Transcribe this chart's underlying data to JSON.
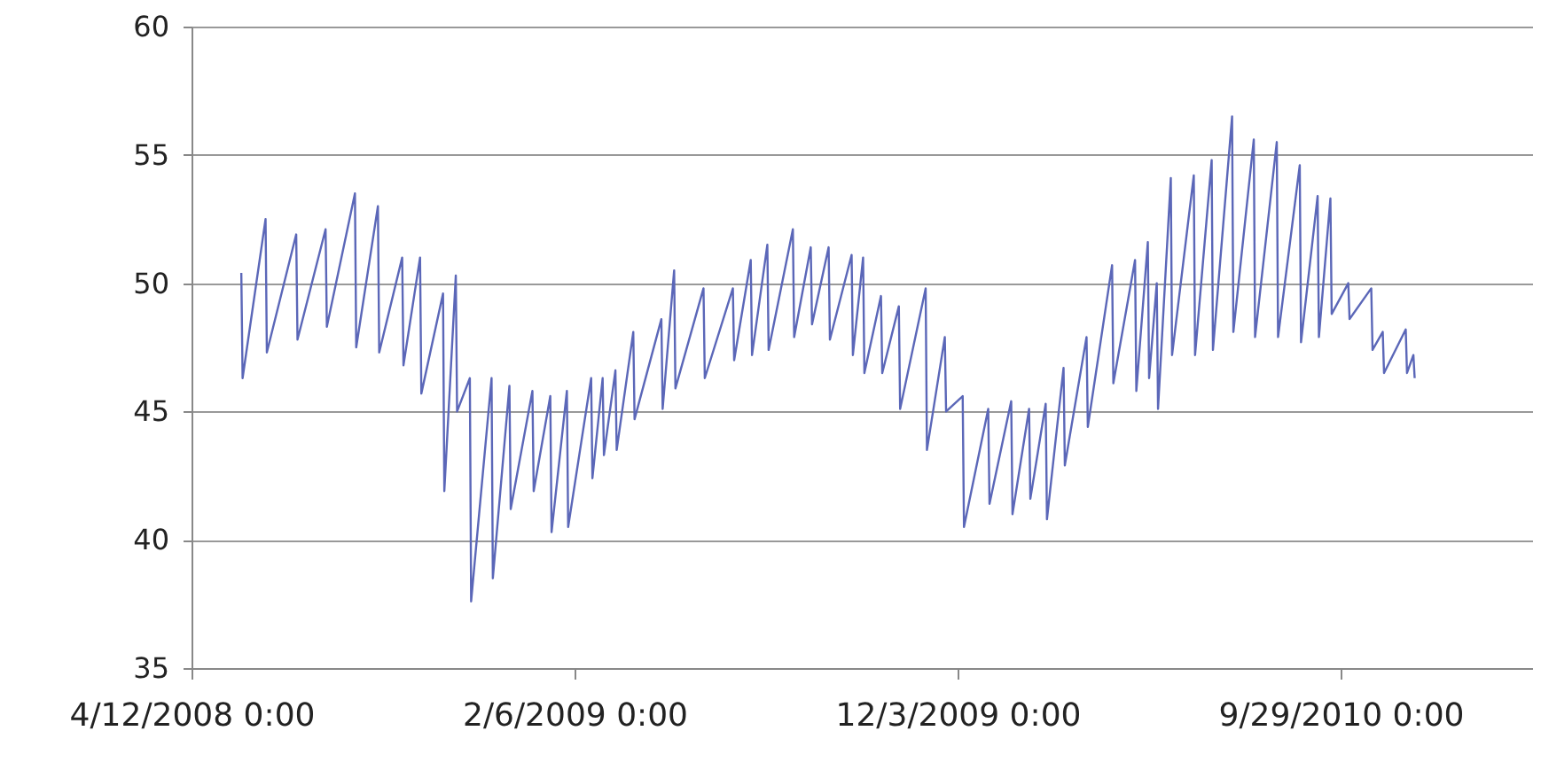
{
  "chart_data": {
    "type": "line",
    "x": [
      "2008-05-21",
      "2008-05-22",
      "2008-06-09",
      "2008-06-10",
      "2008-07-03",
      "2008-07-04",
      "2008-07-26",
      "2008-07-27",
      "2008-08-18",
      "2008-08-19",
      "2008-09-05",
      "2008-09-06",
      "2008-09-24",
      "2008-09-25",
      "2008-10-08",
      "2008-10-09",
      "2008-10-26",
      "2008-10-27",
      "2008-11-05",
      "2008-11-06",
      "2008-11-16",
      "2008-11-17",
      "2008-12-03",
      "2008-12-04",
      "2008-12-17",
      "2008-12-18",
      "2009-01-04",
      "2009-01-05",
      "2009-01-18",
      "2009-01-19",
      "2009-01-31",
      "2009-02-01",
      "2009-02-19",
      "2009-02-20",
      "2009-02-28",
      "2009-03-01",
      "2009-03-10",
      "2009-03-11",
      "2009-03-24",
      "2009-03-25",
      "2009-04-15",
      "2009-04-16",
      "2009-04-25",
      "2009-04-26",
      "2009-05-18",
      "2009-05-19",
      "2009-06-10",
      "2009-06-11",
      "2009-06-24",
      "2009-06-25",
      "2009-07-07",
      "2009-07-08",
      "2009-07-27",
      "2009-07-28",
      "2009-08-10",
      "2009-08-11",
      "2009-08-24",
      "2009-08-25",
      "2009-09-11",
      "2009-09-12",
      "2009-09-20",
      "2009-09-21",
      "2009-10-04",
      "2009-10-05",
      "2009-10-18",
      "2009-10-19",
      "2009-11-08",
      "2009-11-09",
      "2009-11-23",
      "2009-11-24",
      "2009-12-07",
      "2009-12-08",
      "2009-12-27",
      "2009-12-28",
      "2010-01-14",
      "2010-01-15",
      "2010-01-28",
      "2010-01-29",
      "2010-02-10",
      "2010-02-11",
      "2010-02-24",
      "2010-02-25",
      "2010-03-14",
      "2010-03-15",
      "2010-04-03",
      "2010-04-04",
      "2010-04-21",
      "2010-04-22",
      "2010-05-01",
      "2010-05-02",
      "2010-05-08",
      "2010-05-09",
      "2010-05-19",
      "2010-05-20",
      "2010-06-06",
      "2010-06-07",
      "2010-06-20",
      "2010-06-21",
      "2010-07-06",
      "2010-07-07",
      "2010-07-23",
      "2010-07-24",
      "2010-08-10",
      "2010-08-11",
      "2010-08-28",
      "2010-08-29",
      "2010-09-11",
      "2010-09-12",
      "2010-09-21",
      "2010-09-22",
      "2010-10-05",
      "2010-10-06",
      "2010-10-23",
      "2010-10-24",
      "2010-11-01",
      "2010-11-02",
      "2010-11-19",
      "2010-11-20",
      "2010-11-25",
      "2010-11-26"
    ],
    "series": [
      {
        "color": "#5b67b8",
        "values": [
          50.4,
          46.3,
          52.5,
          47.3,
          51.9,
          47.8,
          52.1,
          48.3,
          53.5,
          47.5,
          53.0,
          47.3,
          51.0,
          46.8,
          51.0,
          45.7,
          49.6,
          41.9,
          50.3,
          45.0,
          46.3,
          37.6,
          46.3,
          38.5,
          46.0,
          41.2,
          45.8,
          41.9,
          45.6,
          40.3,
          45.8,
          40.5,
          46.3,
          42.4,
          46.3,
          43.3,
          46.6,
          43.5,
          48.1,
          44.7,
          48.6,
          45.1,
          50.5,
          45.9,
          49.8,
          46.3,
          49.8,
          47.0,
          50.9,
          47.2,
          51.5,
          47.4,
          52.1,
          47.9,
          51.4,
          48.4,
          51.4,
          47.8,
          51.1,
          47.2,
          51.0,
          46.5,
          49.5,
          46.5,
          49.1,
          45.1,
          49.8,
          43.5,
          47.9,
          45.0,
          45.6,
          40.5,
          45.1,
          41.4,
          45.4,
          41.0,
          45.1,
          41.6,
          45.3,
          40.8,
          46.7,
          42.9,
          47.9,
          44.4,
          50.7,
          46.1,
          50.9,
          45.8,
          51.6,
          46.3,
          50.0,
          45.1,
          54.1,
          47.2,
          54.2,
          47.2,
          54.8,
          47.4,
          56.5,
          48.1,
          55.6,
          47.9,
          55.5,
          47.9,
          54.6,
          47.7,
          53.4,
          47.9,
          53.3,
          48.8,
          50.0,
          48.6,
          49.8,
          47.4,
          48.1,
          46.5,
          48.2,
          46.5,
          47.2,
          46.3
        ]
      }
    ],
    "xlim": [
      "2008-04-12",
      "2011-02-26"
    ],
    "xticks": [
      {
        "value": "2008-04-12",
        "label": "4/12/2008 0:00"
      },
      {
        "value": "2009-02-06",
        "label": "2/6/2009 0:00"
      },
      {
        "value": "2009-12-03",
        "label": "12/3/2009 0:00"
      },
      {
        "value": "2010-09-29",
        "label": "9/29/2010 0:00"
      }
    ],
    "ylim": [
      35,
      60
    ],
    "yticks": [
      35,
      40,
      45,
      50,
      55,
      60
    ],
    "grid": "y",
    "marker": "none",
    "line_style": "solid"
  }
}
